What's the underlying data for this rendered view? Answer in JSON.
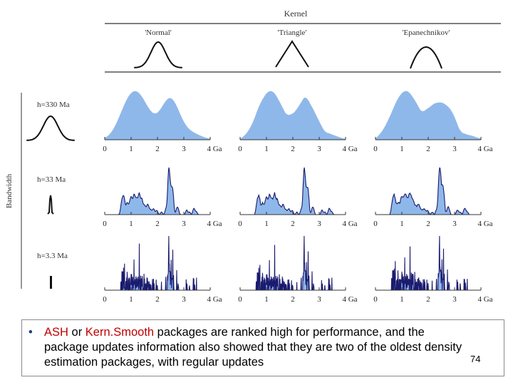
{
  "header": {
    "kernel_label": "Kernel",
    "kernels": [
      {
        "name": "'Normal'",
        "shape": "gaussian"
      },
      {
        "name": "'Triangle'",
        "shape": "triangle"
      },
      {
        "name": "'Epanechnikov'",
        "shape": "parabola"
      }
    ]
  },
  "side": {
    "axis_label": "Bandwidth",
    "rows": [
      {
        "label": "h=330 Ma",
        "detail": "smooth"
      },
      {
        "label": "h=33 Ma",
        "detail": "medium"
      },
      {
        "label": "h=3.3 Ma",
        "detail": "spiky"
      }
    ]
  },
  "axis": {
    "ticks": [
      "0",
      "1",
      "2",
      "3",
      "4 Ga"
    ],
    "range": [
      0,
      4
    ]
  },
  "colors": {
    "fill": "#8fb8ea",
    "stroke": "#1a1a6e",
    "line": "#333333",
    "accent": "#c00000"
  },
  "caption": {
    "bullet": "•",
    "term1": "ASH",
    "or": " or ",
    "term2": "Kern.Smooth",
    "rest": " packages are ranked high for performance, and the package updates information also showed that they are two of the oldest density estimation packages, with regular updates"
  },
  "page_number": "74"
}
